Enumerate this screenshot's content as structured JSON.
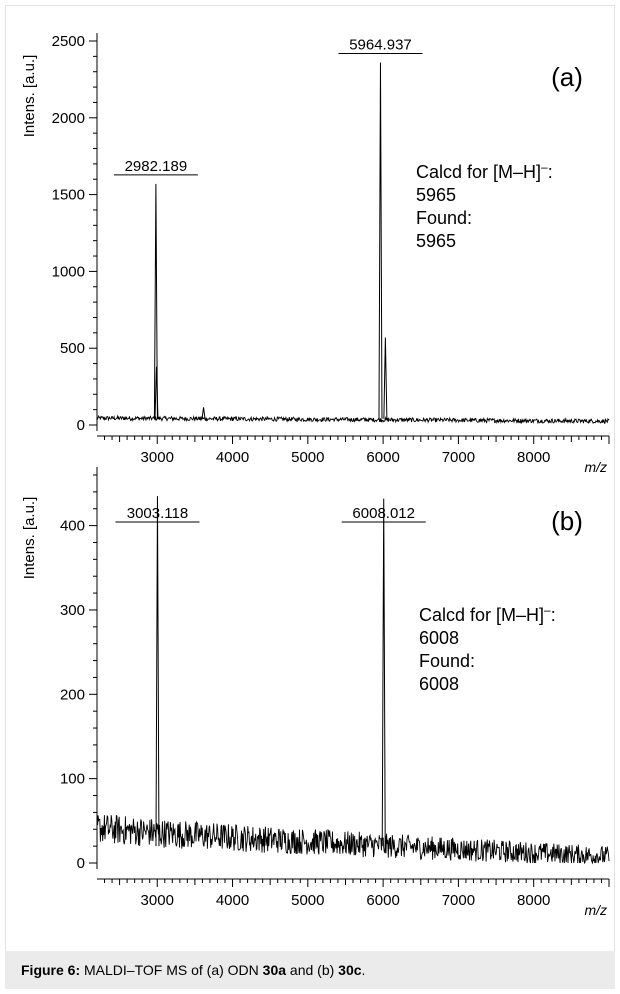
{
  "chart_data": [
    {
      "type": "line",
      "panel_label": "(a)",
      "ylabel": "Intens. [a.u.]",
      "xlabel": "m/z",
      "xlim": [
        2200,
        9000
      ],
      "ylim": [
        0,
        2500
      ],
      "xticks": [
        3000,
        4000,
        5000,
        6000,
        7000,
        8000
      ],
      "yticks": [
        0,
        500,
        1000,
        1500,
        2000,
        2500
      ],
      "baseline": 45,
      "peaks": [
        {
          "x": 2982.189,
          "y": 1570,
          "label": "2982.189"
        },
        {
          "x": 2990,
          "y": 380,
          "label": ""
        },
        {
          "x": 3615,
          "y": 115,
          "label": ""
        },
        {
          "x": 5964.937,
          "y": 2360,
          "label": "5964.937"
        },
        {
          "x": 6030,
          "y": 570,
          "label": ""
        }
      ],
      "annotation": {
        "line1": "Calcd for [M–H]",
        "sup": "–",
        "line1_end": ":",
        "line2": "5965",
        "line3": "Found:",
        "line4": "5965"
      }
    },
    {
      "type": "line",
      "panel_label": "(b)",
      "ylabel": "Intens. [a.u.]",
      "xlabel": "m/z",
      "xlim": [
        2200,
        9000
      ],
      "ylim": [
        0,
        460
      ],
      "xticks": [
        3000,
        4000,
        5000,
        6000,
        7000,
        8000
      ],
      "yticks": [
        0,
        100,
        200,
        300,
        400
      ],
      "baseline_start": 42,
      "baseline_end": 8,
      "peaks": [
        {
          "x": 3003.118,
          "y": 435,
          "label": "3003.118"
        },
        {
          "x": 6008.012,
          "y": 432,
          "label": "6008.012"
        }
      ],
      "annotation": {
        "line1": "Calcd for [M–H]",
        "sup": "–",
        "line1_end": ":",
        "line2": "6008",
        "line3": "Found:",
        "line4": "6008"
      }
    }
  ],
  "caption": {
    "label": "Figure 6:",
    "t1": " MALDI–TOF MS of (a) ODN ",
    "b1": "30a",
    "t2": " and (b) ",
    "b2": "30c",
    "t3": "."
  }
}
